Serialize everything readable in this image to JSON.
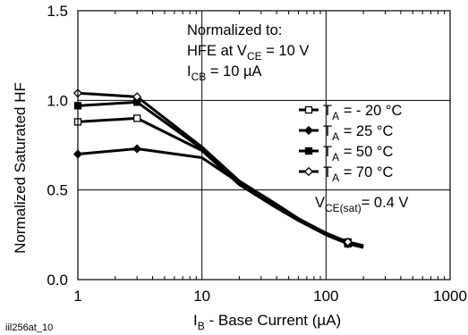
{
  "figure_id": "iil256at_10",
  "chart_data": {
    "type": "line",
    "title": "",
    "xlabel_main": "I",
    "xlabel_sub": "B",
    "xlabel_rest": " - Base Current (µA)",
    "ylabel": "Normalized Saturated HF",
    "x_scale": "log",
    "xlim": [
      1,
      1000
    ],
    "ylim": [
      0.0,
      1.5
    ],
    "x_ticks": [
      1,
      10,
      100,
      1000
    ],
    "x_tick_labels": [
      "1",
      "10",
      "100",
      "1000"
    ],
    "y_ticks": [
      0.0,
      0.5,
      1.0,
      1.5
    ],
    "y_tick_labels": [
      "0.0",
      "0.5",
      "1.0",
      "1.5"
    ],
    "grid": true,
    "legend_position": "right",
    "series": [
      {
        "name_main": "T",
        "name_sub": "A",
        "name_rest": " = - 20 °C",
        "marker": "square-open",
        "x": [
          1,
          3,
          10,
          20,
          40,
          60,
          100,
          150,
          200
        ],
        "y": [
          0.88,
          0.9,
          0.72,
          0.53,
          0.4,
          0.33,
          0.25,
          0.2,
          0.18
        ]
      },
      {
        "name_main": "T",
        "name_sub": "A",
        "name_rest": " = 25 °C",
        "marker": "diamond-filled",
        "x": [
          1,
          3,
          10,
          20,
          40,
          60,
          100,
          150,
          200
        ],
        "y": [
          0.7,
          0.73,
          0.68,
          0.54,
          0.41,
          0.34,
          0.25,
          0.2,
          0.18
        ]
      },
      {
        "name_main": "T",
        "name_sub": "A",
        "name_rest": " = 50 °C",
        "marker": "square-filled",
        "x": [
          1,
          3,
          10,
          20,
          40,
          60,
          100,
          150,
          200
        ],
        "y": [
          0.97,
          0.99,
          0.73,
          0.54,
          0.41,
          0.33,
          0.25,
          0.21,
          0.18
        ]
      },
      {
        "name_main": "T",
        "name_sub": "A",
        "name_rest": " = 70 °C",
        "marker": "diamond-open",
        "x": [
          1,
          3,
          10,
          20,
          40,
          60,
          100,
          150,
          200
        ],
        "y": [
          1.04,
          1.02,
          0.74,
          0.55,
          0.42,
          0.34,
          0.26,
          0.21,
          0.19
        ]
      }
    ],
    "annotations": {
      "normalized_title": "Normalized to:",
      "hfe_main": "HFE at V",
      "hfe_sub": "CE",
      "hfe_rest": " = 10 V",
      "icb_main": "I",
      "icb_sub": "CB",
      "icb_rest": "  = 10 µA",
      "vce_main": "V",
      "vce_sub": "CE(sat)",
      "vce_rest": "= 0.4 V"
    }
  }
}
